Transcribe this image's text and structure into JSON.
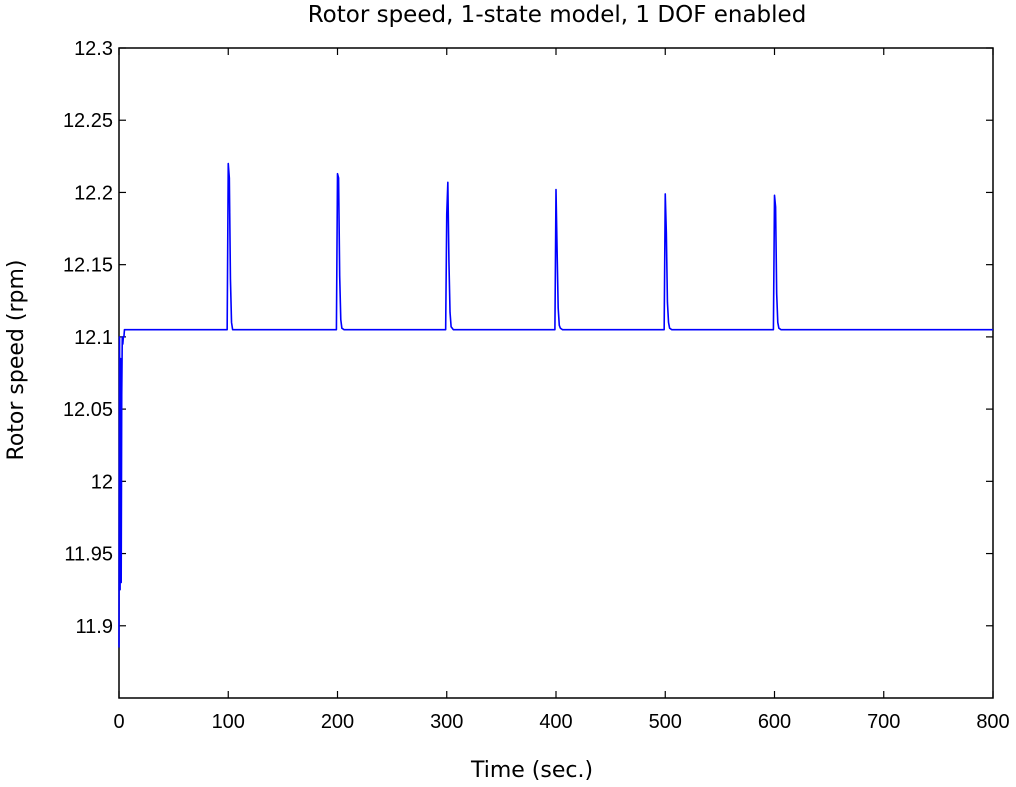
{
  "chart_data": {
    "type": "line",
    "title": "Rotor speed, 1-state model, 1 DOF enabled",
    "xlabel": "Time (sec.)",
    "ylabel": "Rotor speed (rpm)",
    "xlim": [
      0,
      800
    ],
    "ylim": [
      11.85,
      12.3
    ],
    "xticks": [
      0,
      100,
      200,
      300,
      400,
      500,
      600,
      700,
      800
    ],
    "xtick_labels": [
      "0",
      "100",
      "200",
      "300",
      "400",
      "500",
      "600",
      "700",
      "800"
    ],
    "yticks": [
      11.9,
      11.95,
      12.0,
      12.05,
      12.1,
      12.15,
      12.2,
      12.25,
      12.3
    ],
    "ytick_labels": [
      "11.9",
      "11.95",
      "12",
      "12.05",
      "12.1",
      "12.15",
      "12.2",
      "12.25",
      "12.3"
    ],
    "grid": false,
    "series": [
      {
        "color": "#0000ff",
        "x": [
          0,
          0.5,
          1,
          1.5,
          2,
          2.5,
          3,
          3.5,
          4,
          4.5,
          5,
          6,
          8,
          10,
          20,
          50,
          99,
          100,
          101,
          102,
          103,
          104,
          106,
          120,
          199,
          200,
          201,
          202,
          203,
          204,
          206,
          220,
          299,
          300,
          301,
          302,
          303,
          304,
          306,
          320,
          399,
          400,
          401,
          402,
          403,
          404,
          406,
          420,
          499,
          500,
          501,
          502,
          503,
          504,
          506,
          520,
          599,
          600,
          601,
          602,
          603,
          604,
          606,
          620,
          700,
          800
        ],
        "y": [
          11.885,
          12.1,
          11.925,
          12.085,
          11.93,
          12.06,
          12.1,
          12.095,
          12.1,
          12.1,
          12.105,
          12.105,
          12.105,
          12.105,
          12.105,
          12.105,
          12.105,
          12.22,
          12.21,
          12.14,
          12.11,
          12.105,
          12.105,
          12.105,
          12.105,
          12.213,
          12.21,
          12.142,
          12.112,
          12.106,
          12.105,
          12.105,
          12.105,
          12.185,
          12.207,
          12.152,
          12.117,
          12.107,
          12.105,
          12.105,
          12.105,
          12.202,
          12.16,
          12.12,
          12.108,
          12.106,
          12.105,
          12.105,
          12.105,
          12.199,
          12.172,
          12.124,
          12.11,
          12.106,
          12.105,
          12.105,
          12.105,
          12.198,
          12.19,
          12.13,
          12.11,
          12.106,
          12.105,
          12.105,
          12.105,
          12.105
        ]
      }
    ]
  }
}
